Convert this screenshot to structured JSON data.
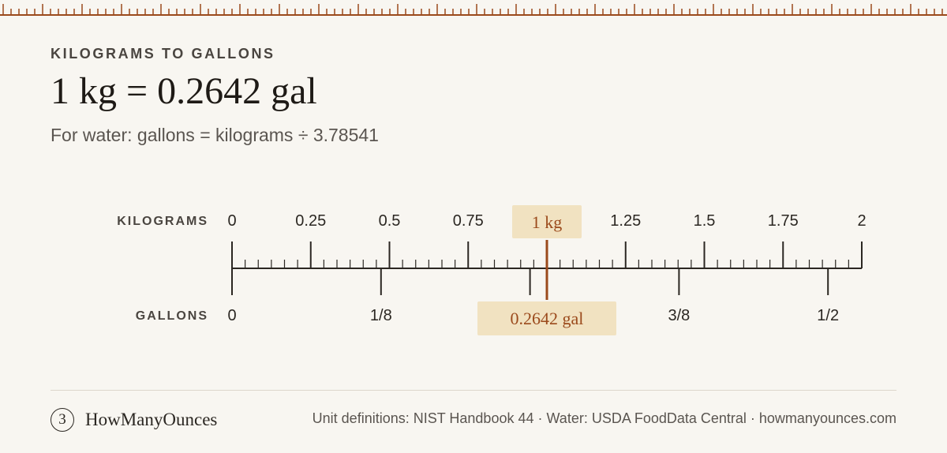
{
  "header": {
    "eyebrow": "KILOGRAMS TO GALLONS",
    "headline": "1 kg = 0.2642 gal",
    "formula": "For water: gallons = kilograms ÷ 3.78541"
  },
  "scale": {
    "kilograms": {
      "label": "KILOGRAMS",
      "min": 0,
      "max": 2,
      "ticks": [
        {
          "value": 0,
          "label": "0"
        },
        {
          "value": 0.25,
          "label": "0.25"
        },
        {
          "value": 0.5,
          "label": "0.5"
        },
        {
          "value": 0.75,
          "label": "0.75"
        },
        {
          "value": 1.25,
          "label": "1.25"
        },
        {
          "value": 1.5,
          "label": "1.5"
        },
        {
          "value": 1.75,
          "label": "1.75"
        },
        {
          "value": 2,
          "label": "2"
        }
      ],
      "minor_per_major": 5,
      "marker": {
        "value": 1,
        "label": "1 kg"
      }
    },
    "gallons": {
      "label": "GALLONS",
      "min": 0,
      "max": 0.52834,
      "ticks": [
        {
          "value": 0,
          "label": "0"
        },
        {
          "value": 0.125,
          "label": "1/8"
        },
        {
          "value": 0.25,
          "label": ""
        },
        {
          "value": 0.375,
          "label": "3/8"
        },
        {
          "value": 0.5,
          "label": "1/2"
        }
      ],
      "marker": {
        "value": 0.2642,
        "label": "0.2642 gal"
      }
    }
  },
  "colors": {
    "accent": "#9b4a1c",
    "highlight": "#f1e2c1",
    "ink": "#2b2722",
    "background": "#f8f6f1"
  },
  "footer": {
    "logo_icon": "spiral-3-icon",
    "logo_glyph": "3",
    "brand": "HowManyOunces",
    "sources": "Unit definitions: NIST Handbook 44 · Water: USDA FoodData Central · howmanyounces.com"
  }
}
